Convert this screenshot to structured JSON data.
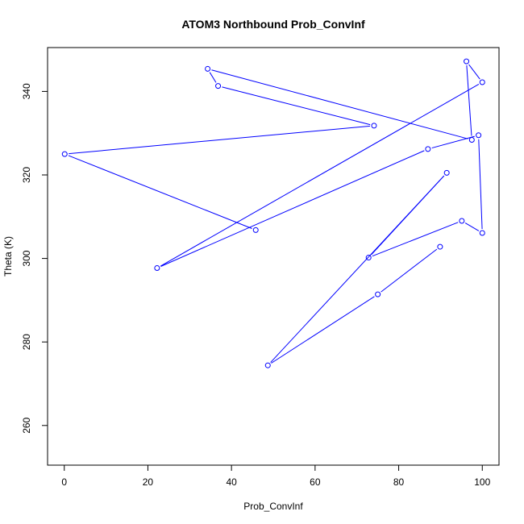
{
  "chart_data": {
    "type": "line",
    "title": "ATOM3 Northbound Prob_ConvInf",
    "xlabel": "Prob_ConvInf",
    "ylabel": "Theta (K)",
    "xlim": [
      -4,
      104
    ],
    "ylim": [
      250.5,
      350.5
    ],
    "x_ticks": [
      0,
      20,
      40,
      60,
      80,
      100
    ],
    "y_ticks": [
      260,
      280,
      300,
      320,
      340
    ],
    "grid": false,
    "color": "#0000ff",
    "series": [
      {
        "points": [
          {
            "x": 89.9,
            "y": 302.8
          },
          {
            "x": 75.0,
            "y": 291.4
          },
          {
            "x": 48.7,
            "y": 274.4
          },
          {
            "x": 91.5,
            "y": 320.5
          },
          {
            "x": 72.8,
            "y": 300.2
          },
          {
            "x": 95.1,
            "y": 309.0
          },
          {
            "x": 100.0,
            "y": 306.1
          },
          {
            "x": 99.1,
            "y": 329.5
          },
          {
            "x": 87.0,
            "y": 326.2
          },
          {
            "x": 22.2,
            "y": 297.7
          },
          {
            "x": 100.0,
            "y": 342.2
          },
          {
            "x": 96.2,
            "y": 347.2
          },
          {
            "x": 97.5,
            "y": 328.4
          },
          {
            "x": 34.3,
            "y": 345.4
          },
          {
            "x": 36.8,
            "y": 341.3
          },
          {
            "x": 74.1,
            "y": 331.8
          },
          {
            "x": 0.1,
            "y": 325.0
          },
          {
            "x": 45.8,
            "y": 306.8
          }
        ]
      }
    ]
  }
}
